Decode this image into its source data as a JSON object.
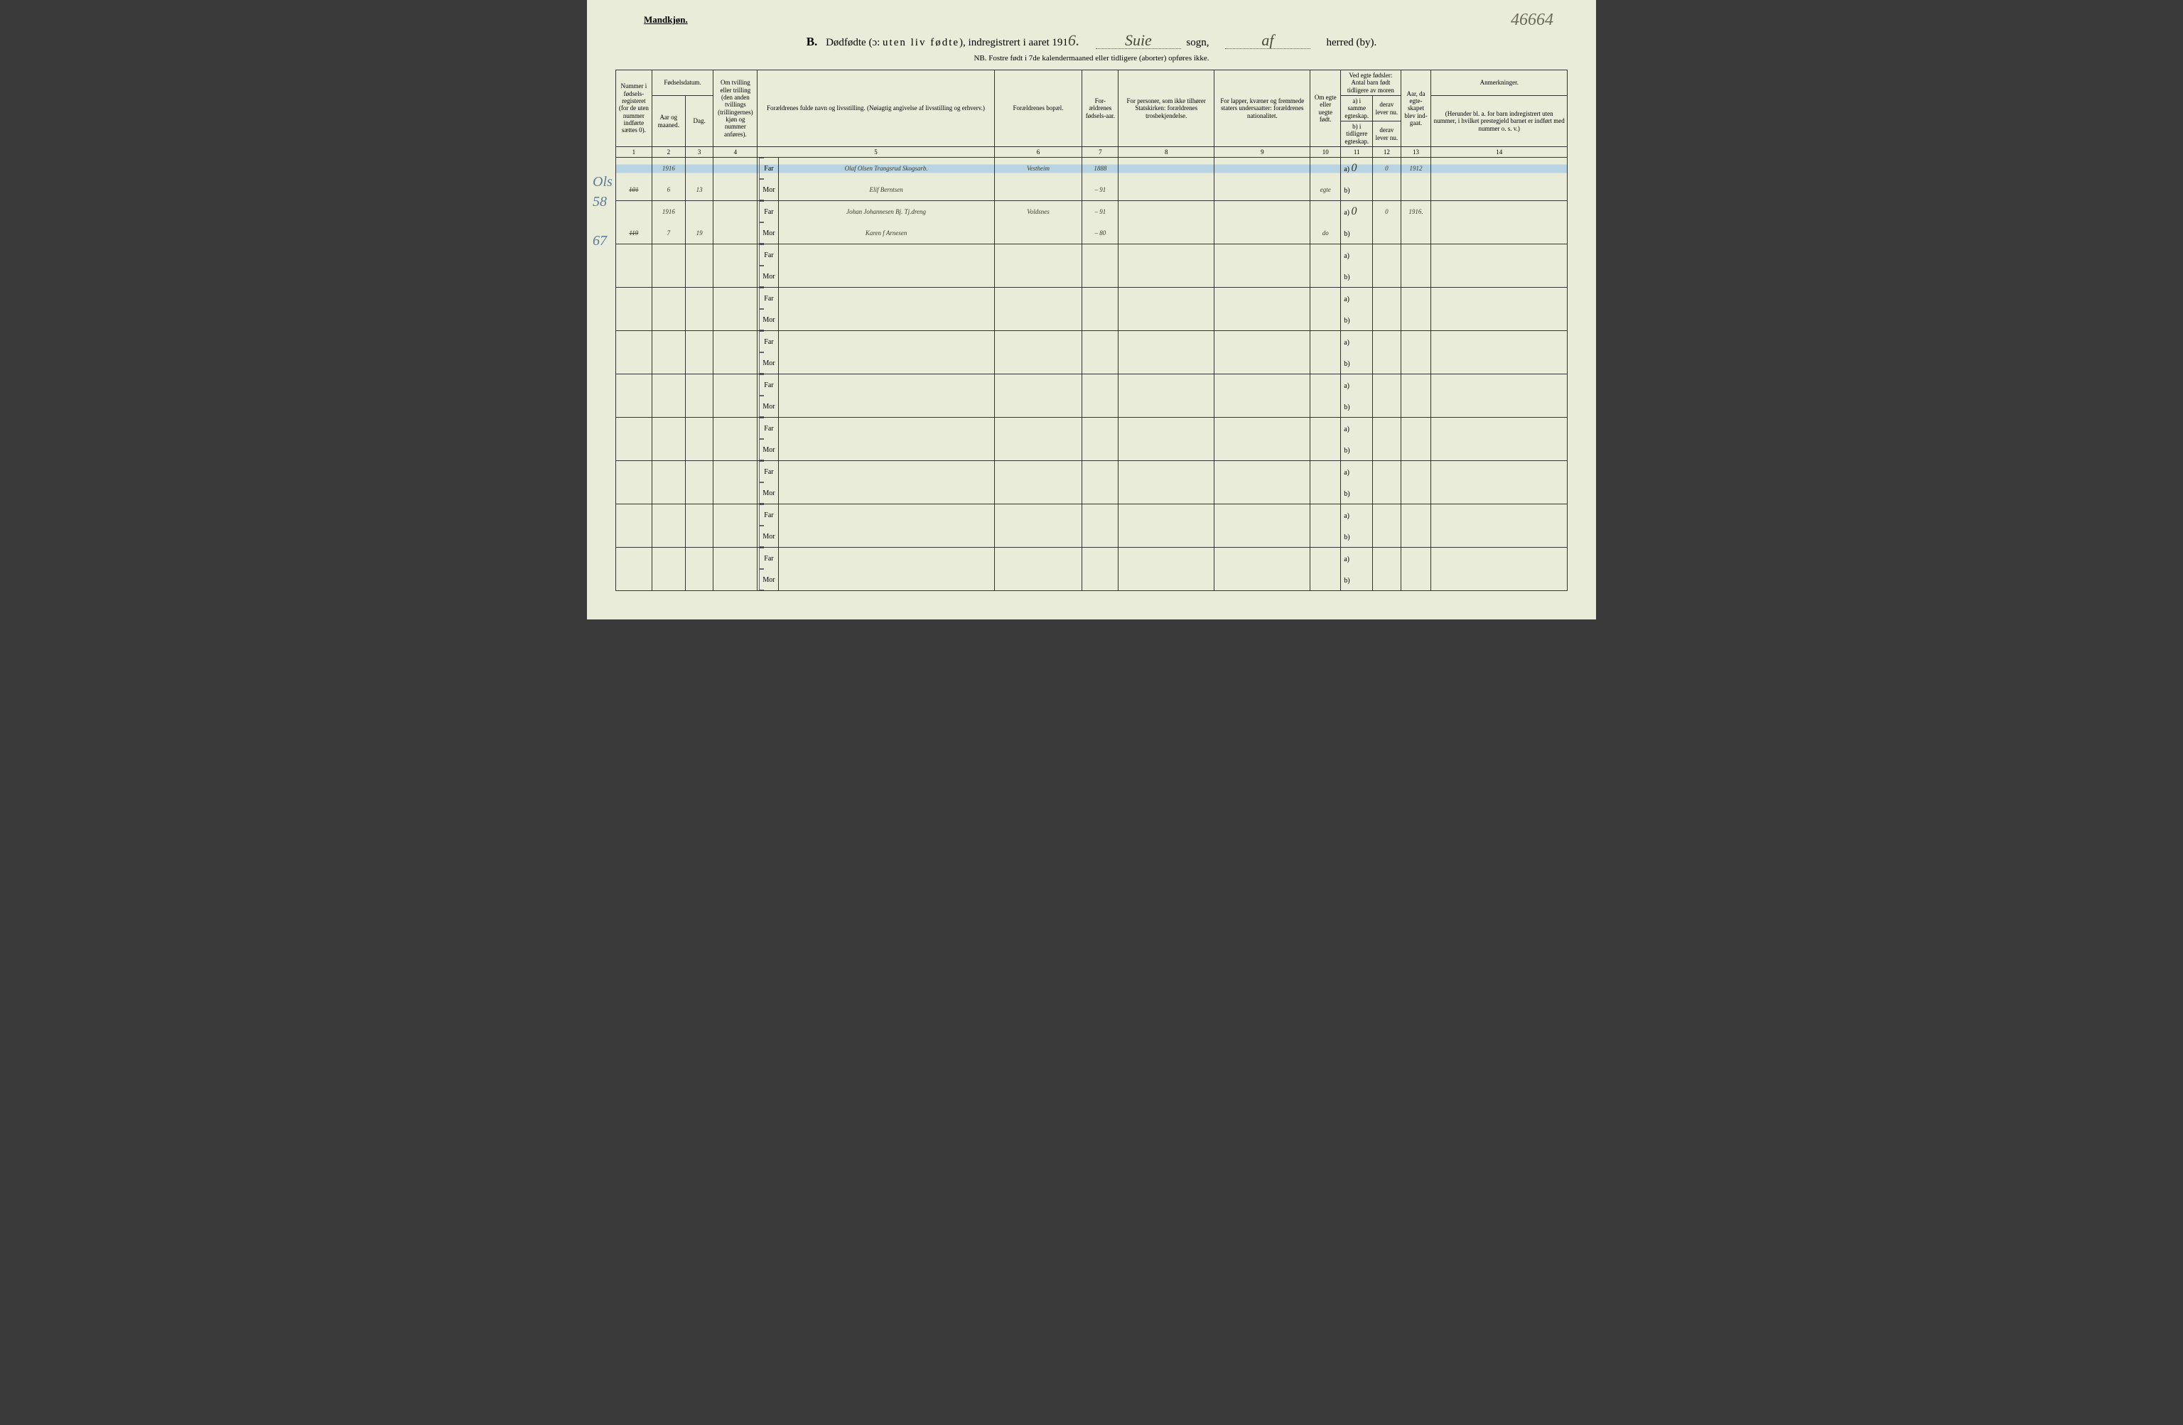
{
  "corner_note": "46664",
  "top_label": "Mandkjøn.",
  "title": {
    "section_letter": "B.",
    "main": "Dødfødte (ɔ:",
    "spaced1": "uten liv fødte",
    "after_spaced": "), indregistrert i aaret 191",
    "year_suffix": "6.",
    "sogn_value": "Suie",
    "sogn_label": "sogn,",
    "herred_value": "af",
    "herred_label": "herred (by)."
  },
  "nb": "NB.  Fostre født i 7de kalendermaaned eller tidligere (aborter) opføres ikke.",
  "headers": {
    "c1": "Nummer i fødsels-registeret (for de uten nummer indførte sættes 0).",
    "c2_group": "Fødselsdatum.",
    "c2a": "Aar og maaned.",
    "c2b": "Dag.",
    "c3": "Om tvilling eller trilling (den anden tvillings (trillingernes) kjøn og nummer anføres).",
    "c4": "Forældrenes fulde navn og livsstilling. (Nøiagtig angivelse af livsstilling og erhverv.)",
    "c5": "Forældrenes bopæl.",
    "c6": "For-ældrenes fødsels-aar.",
    "c7": "For personer, som ikke tilhører Statskirken: forældrenes trosbekjendelse.",
    "c8": "For lapper, kvæner og fremmede staters undersaatter: forældrenes nationalitet.",
    "c9": "Om egte eller uegte født.",
    "c10_group": "Ved egte fødsler: Antal barn født tidligere av moren",
    "c10a": "a) i samme egteskap.",
    "c10b": "derav lever nu.",
    "c10c": "b) i tidligere egteskap.",
    "c10d": "derav lever nu.",
    "c11": "Aar, da egte-skapet blev ind-gaat.",
    "c12": "Anmerkninger.",
    "c12_sub": "(Herunder bl. a. for barn indregistrert uten nummer, i hvilket prestegjeld barnet er indført med nummer o. s. v.)"
  },
  "colnums": [
    "1",
    "2",
    "3",
    "4",
    "5",
    "6",
    "7",
    "8",
    "9",
    "10",
    "11",
    "12",
    "13",
    "14"
  ],
  "far_label": "Far",
  "mor_label": "Mor",
  "ab_a": "a)",
  "ab_b": "b)",
  "margin_notes": {
    "r1": "Ols",
    "r2": "58",
    "r3": "",
    "r4": "67"
  },
  "rows": [
    {
      "num": "",
      "year_month": "1916",
      "day": "",
      "twin": "",
      "parent": "Olaf Olsen Trangsrud Skogsarb.",
      "bopael": "Vestheim",
      "faar": "1888",
      "tros": "",
      "nat": "",
      "egte": "",
      "a": "0",
      "a2": "0",
      "year_m": "1912",
      "anm": "",
      "highlight": true
    },
    {
      "num": "101",
      "num_strike": true,
      "year_month": "6",
      "day": "13",
      "twin": "",
      "parent": "Elif Berntsen",
      "bopael": "",
      "faar": "– 91",
      "tros": "",
      "nat": "",
      "egte": "egte",
      "a": "",
      "a2": "",
      "year_m": "",
      "anm": ""
    },
    {
      "num": "",
      "year_month": "1916",
      "day": "",
      "twin": "",
      "parent": "Johan Johannesen Bj. Tj.dreng",
      "bopael": "Voldsnes",
      "faar": "– 91",
      "tros": "",
      "nat": "",
      "egte": "",
      "a": "0",
      "a2": "0",
      "year_m": "1916.",
      "anm": ""
    },
    {
      "num": "119",
      "num_strike": true,
      "year_month": "7",
      "day": "19",
      "twin": "",
      "parent": "Karen f Arnesen",
      "bopael": "",
      "faar": "– 80",
      "tros": "",
      "nat": "",
      "egte": "do",
      "a": "",
      "a2": "",
      "year_m": "",
      "anm": ""
    }
  ],
  "empty_pairs": 8
}
